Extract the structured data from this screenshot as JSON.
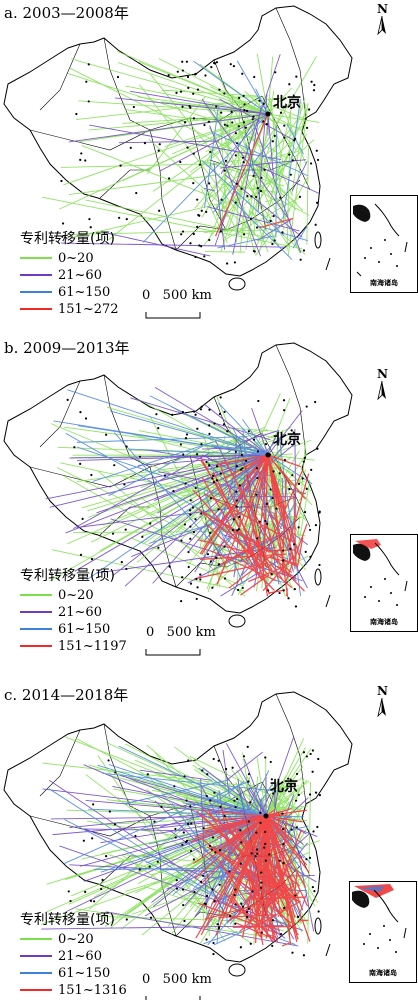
{
  "north_label": "N",
  "beijing_label": "北京",
  "inset_label": "南海诸岛",
  "scale_label": "0   500 km",
  "legend_title": "专利转移量(项)",
  "colors": {
    "green": "#7CE04A",
    "purple": "#6A3CC8",
    "blue": "#3F7FE0",
    "red": "#F02828"
  },
  "panels": [
    {
      "title": "a. 2003—2008年",
      "legend": [
        {
          "label": "0~20",
          "color": "#7CE04A"
        },
        {
          "label": "21~60",
          "color": "#6A3CC8"
        },
        {
          "label": "61~150",
          "color": "#3F7FE0"
        },
        {
          "label": "151~272",
          "color": "#F02828"
        }
      ]
    },
    {
      "title": "b. 2009—2013年",
      "legend": [
        {
          "label": "0~20",
          "color": "#7CE04A"
        },
        {
          "label": "21~60",
          "color": "#6A3CC8"
        },
        {
          "label": "61~150",
          "color": "#3F7FE0"
        },
        {
          "label": "151~1197",
          "color": "#F02828"
        }
      ]
    },
    {
      "title": "c. 2014—2018年",
      "legend": [
        {
          "label": "0~20",
          "color": "#7CE04A"
        },
        {
          "label": "21~60",
          "color": "#6A3CC8"
        },
        {
          "label": "61~150",
          "color": "#3F7FE0"
        },
        {
          "label": "151~1316",
          "color": "#F02828"
        }
      ]
    }
  ]
}
